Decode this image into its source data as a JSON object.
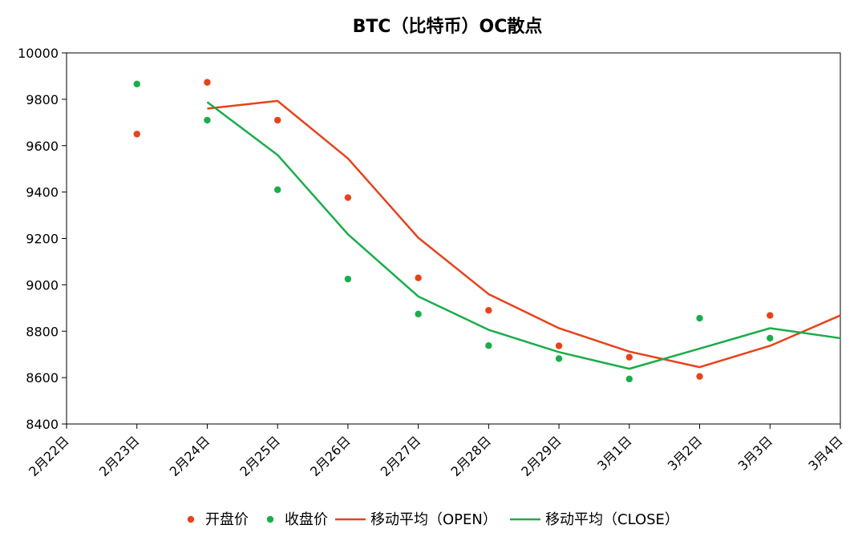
{
  "chart_data": {
    "type": "scatter",
    "title": "BTC（比特币）OC散点",
    "xlabel": "",
    "ylabel": "",
    "ylim": [
      8400,
      10000
    ],
    "yticks": [
      "8400",
      "8600",
      "8800",
      "9000",
      "9200",
      "9400",
      "9600",
      "9800",
      "10000"
    ],
    "categories": [
      "2月22日",
      "2月23日",
      "2月24日",
      "2月25日",
      "2月26日",
      "2月27日",
      "2月28日",
      "2月29日",
      "3月1日",
      "3月2日",
      "3月3日",
      "3月4日"
    ],
    "series": [
      {
        "name": "开盘价",
        "kind": "scatter",
        "color": "#e8421b",
        "values": [
          null,
          9650,
          9873,
          9710,
          9376,
          9030,
          8890,
          8737,
          8688,
          8605,
          8868,
          null
        ]
      },
      {
        "name": "收盘价",
        "kind": "scatter",
        "color": "#1aad4b",
        "values": [
          null,
          9866,
          9710,
          9410,
          9025,
          8874,
          8738,
          8682,
          8594,
          8856,
          8770,
          null
        ]
      },
      {
        "name": "移动平均（OPEN）",
        "kind": "line",
        "color": "#e8421b",
        "values": [
          null,
          null,
          9760,
          9793,
          9545,
          9203,
          8960,
          8813,
          8712,
          8645,
          8737,
          8868
        ]
      },
      {
        "name": "移动平均（CLOSE）",
        "kind": "line",
        "color": "#1aad4b",
        "values": [
          null,
          null,
          9788,
          9560,
          9218,
          8950,
          8806,
          8710,
          8638,
          8725,
          8813,
          8770
        ]
      }
    ],
    "grid": false,
    "legend": "bottom"
  }
}
